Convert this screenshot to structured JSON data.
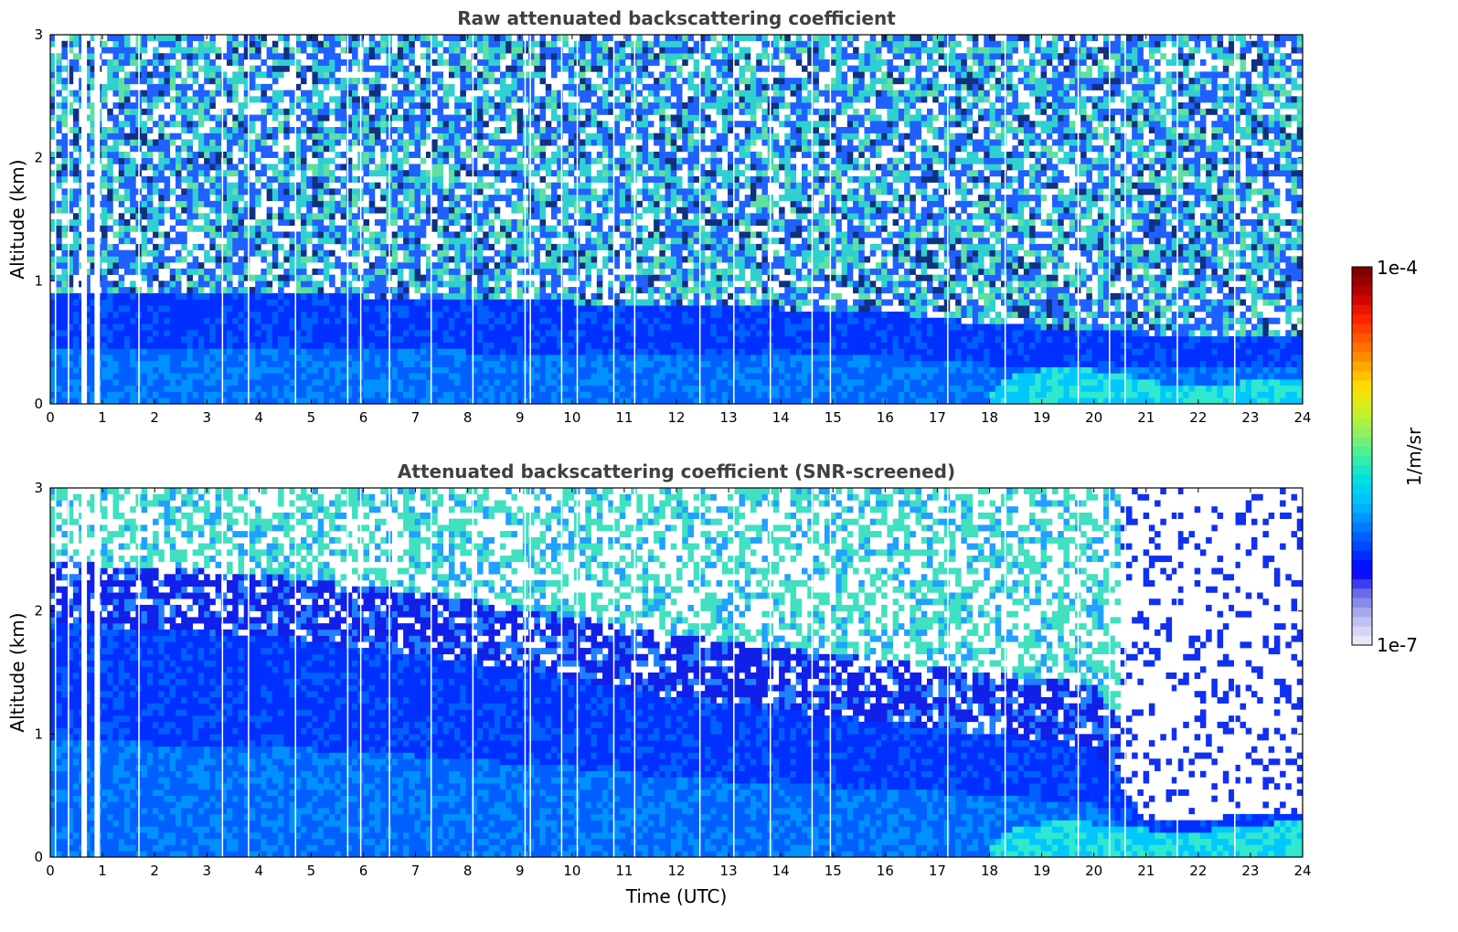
{
  "chart_data": [
    {
      "type": "heatmap",
      "title": "Raw attenuated backscattering coefficient",
      "xlabel": "",
      "ylabel": "Altitude (km)",
      "xlim": [
        0,
        24
      ],
      "ylim": [
        0,
        3
      ],
      "xticks": [
        "0",
        "1",
        "2",
        "3",
        "4",
        "5",
        "6",
        "7",
        "8",
        "9",
        "10",
        "11",
        "12",
        "13",
        "14",
        "15",
        "16",
        "17",
        "18",
        "19",
        "20",
        "21",
        "22",
        "23",
        "24"
      ],
      "yticks": [
        "0",
        "1",
        "2",
        "3"
      ],
      "screened": false,
      "description_values": {
        "boundary_layer_top_km": [
          {
            "t": 0,
            "h": 0.9
          },
          {
            "t": 4,
            "h": 0.9
          },
          {
            "t": 8,
            "h": 0.85
          },
          {
            "t": 12,
            "h": 0.8
          },
          {
            "t": 16,
            "h": 0.75
          },
          {
            "t": 18,
            "h": 0.65
          },
          {
            "t": 20,
            "h": 0.6
          },
          {
            "t": 22,
            "h": 0.55
          },
          {
            "t": 24,
            "h": 0.55
          }
        ],
        "aerosol_layer_top_km": [
          {
            "t": 18,
            "h": 0.1
          },
          {
            "t": 18.5,
            "h": 0.25
          },
          {
            "t": 19.5,
            "h": 0.3
          },
          {
            "t": 20.5,
            "h": 0.25
          },
          {
            "t": 21.5,
            "h": 0.15
          },
          {
            "t": 23,
            "h": 0.18
          },
          {
            "t": 24,
            "h": 0.2
          }
        ],
        "gap_times_utc": [
          0.1,
          0.35,
          0.65,
          0.9,
          1.7,
          3.3,
          3.8,
          4.7,
          5.7,
          5.95,
          6.5,
          7.3,
          8.1,
          9.1,
          9.2,
          9.8,
          10.1,
          10.8,
          11.2,
          12.45,
          13.1,
          13.8,
          14.6,
          14.95,
          17.2,
          18.3,
          19.7,
          20.3,
          20.6,
          21.6,
          22.7
        ]
      }
    },
    {
      "type": "heatmap",
      "title": "Attenuated backscattering coefficient (SNR-screened)",
      "xlabel": "Time (UTC)",
      "ylabel": "Altitude (km)",
      "xlim": [
        0,
        24
      ],
      "ylim": [
        0,
        3
      ],
      "xticks": [
        "0",
        "1",
        "2",
        "3",
        "4",
        "5",
        "6",
        "7",
        "8",
        "9",
        "10",
        "11",
        "12",
        "13",
        "14",
        "15",
        "16",
        "17",
        "18",
        "19",
        "20",
        "21",
        "22",
        "23",
        "24"
      ],
      "yticks": [
        "0",
        "1",
        "2",
        "3"
      ],
      "screened": true,
      "description_values": {
        "dense_layer_top_km": [
          {
            "t": 0,
            "h": 1.9
          },
          {
            "t": 4,
            "h": 1.8
          },
          {
            "t": 8,
            "h": 1.6
          },
          {
            "t": 12,
            "h": 1.3
          },
          {
            "t": 16,
            "h": 1.1
          },
          {
            "t": 18,
            "h": 1.0
          },
          {
            "t": 20,
            "h": 0.9
          },
          {
            "t": 21,
            "h": 0.3
          },
          {
            "t": 24,
            "h": 0.35
          }
        ],
        "aerosol_layer_top_km": [
          {
            "t": 18,
            "h": 0.1
          },
          {
            "t": 18.5,
            "h": 0.25
          },
          {
            "t": 19.5,
            "h": 0.3
          },
          {
            "t": 20.5,
            "h": 0.25
          },
          {
            "t": 21.5,
            "h": 0.2
          },
          {
            "t": 23,
            "h": 0.25
          },
          {
            "t": 24,
            "h": 0.3
          }
        ],
        "gap_times_utc": [
          0.1,
          0.35,
          0.65,
          0.9,
          1.7,
          3.3,
          3.8,
          4.7,
          5.7,
          5.95,
          6.5,
          7.3,
          8.1,
          9.1,
          9.2,
          9.8,
          10.1,
          10.8,
          11.2,
          12.45,
          13.1,
          13.8,
          14.6,
          14.95,
          17.2,
          18.3,
          19.7,
          20.3,
          20.6,
          21.6,
          22.7
        ]
      }
    }
  ],
  "colorbar": {
    "max_label": "1e-4",
    "min_label": "1e-7",
    "unit_label": "1/m/sr",
    "scale": "log",
    "range": [
      1e-07,
      0.0001
    ],
    "colormap": [
      "#e8e8f8",
      "#b8b8f0",
      "#7070e8",
      "#0000ff",
      "#0040ff",
      "#0080ff",
      "#00c0ff",
      "#00e0e0",
      "#40f0a0",
      "#90f060",
      "#d0f020",
      "#ffe000",
      "#ffa000",
      "#ff6000",
      "#ff2000",
      "#c00000",
      "#800000"
    ]
  }
}
